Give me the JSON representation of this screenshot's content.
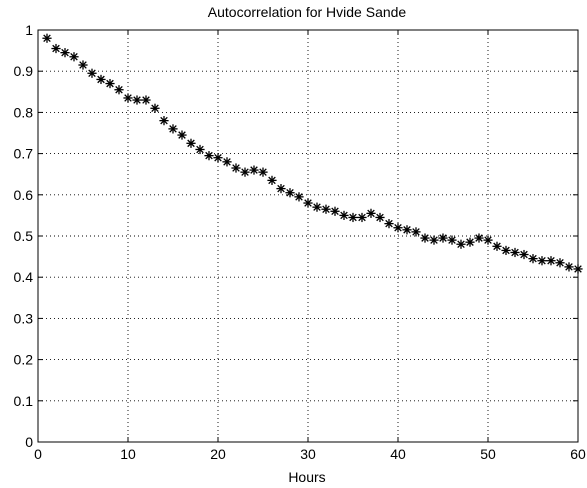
{
  "chart_data": {
    "type": "scatter",
    "title": "Autocorrelation for Hvide Sande",
    "xlabel": "Hours",
    "ylabel": "",
    "xlim": [
      0,
      60
    ],
    "ylim": [
      0,
      1
    ],
    "grid": true,
    "marker": "asterisk",
    "xticks": [
      0,
      10,
      20,
      30,
      40,
      50,
      60
    ],
    "yticks": [
      0,
      0.1,
      0.2,
      0.3,
      0.4,
      0.5,
      0.6,
      0.7,
      0.8,
      0.9,
      1
    ],
    "xtick_labels": [
      "0",
      "10",
      "20",
      "30",
      "40",
      "50",
      "60"
    ],
    "ytick_labels": [
      "0",
      "0.1",
      "0.2",
      "0.3",
      "0.4",
      "0.5",
      "0.6",
      "0.7",
      "0.8",
      "0.9",
      "1"
    ],
    "x": [
      1,
      2,
      3,
      4,
      5,
      6,
      7,
      8,
      9,
      10,
      11,
      12,
      13,
      14,
      15,
      16,
      17,
      18,
      19,
      20,
      21,
      22,
      23,
      24,
      25,
      26,
      27,
      28,
      29,
      30,
      31,
      32,
      33,
      34,
      35,
      36,
      37,
      38,
      39,
      40,
      41,
      42,
      43,
      44,
      45,
      46,
      47,
      48,
      49,
      50,
      51,
      52,
      53,
      54,
      55,
      56,
      57,
      58,
      59,
      60
    ],
    "y": [
      0.98,
      0.955,
      0.945,
      0.935,
      0.915,
      0.895,
      0.88,
      0.87,
      0.855,
      0.835,
      0.83,
      0.83,
      0.81,
      0.78,
      0.76,
      0.745,
      0.725,
      0.71,
      0.695,
      0.69,
      0.68,
      0.665,
      0.655,
      0.66,
      0.655,
      0.635,
      0.615,
      0.605,
      0.595,
      0.58,
      0.57,
      0.565,
      0.56,
      0.55,
      0.545,
      0.545,
      0.555,
      0.545,
      0.53,
      0.52,
      0.515,
      0.51,
      0.495,
      0.49,
      0.495,
      0.49,
      0.48,
      0.485,
      0.495,
      0.49,
      0.475,
      0.465,
      0.46,
      0.455,
      0.445,
      0.44,
      0.44,
      0.435,
      0.425,
      0.42
    ],
    "colors": {
      "marker": "#000000",
      "axes": "#000000",
      "background": "#ffffff"
    }
  }
}
